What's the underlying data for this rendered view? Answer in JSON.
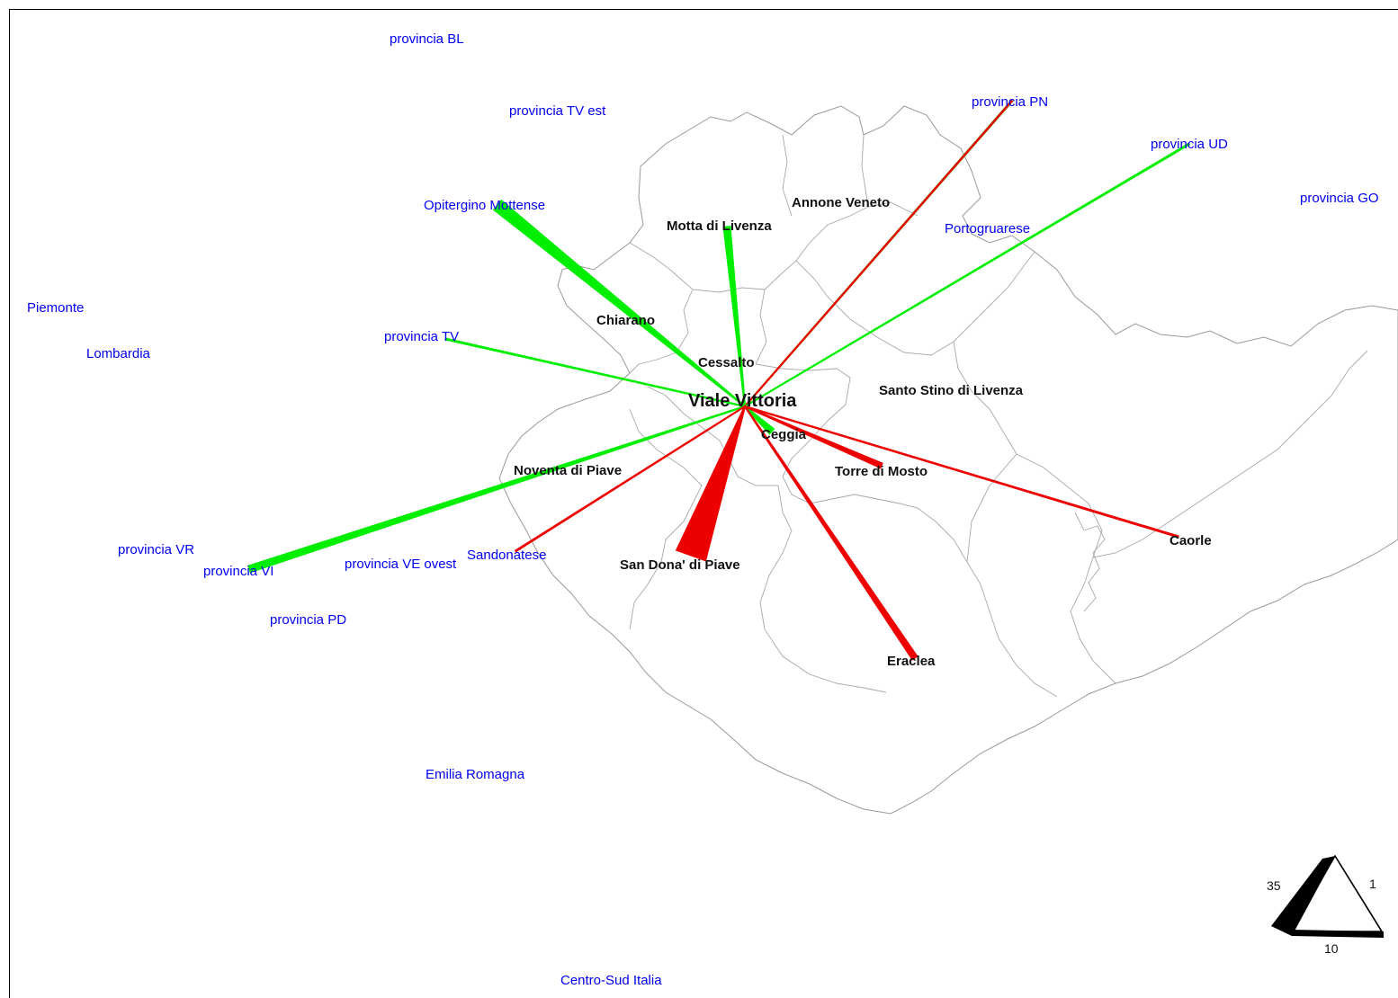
{
  "colors": {
    "outflow": "#00ee00",
    "inflow": "#ee0000",
    "external_label": "#0000ee",
    "municipality_label": "#111111"
  },
  "center": {
    "name": "Viale Vittoria"
  },
  "places": [
    {
      "id": "provincia-bl",
      "name": "provincia BL",
      "type": "external"
    },
    {
      "id": "provincia-tv-est",
      "name": "provincia TV est",
      "type": "external"
    },
    {
      "id": "provincia-pn",
      "name": "provincia PN",
      "type": "external"
    },
    {
      "id": "provincia-ud",
      "name": "provincia UD",
      "type": "external"
    },
    {
      "id": "provincia-go",
      "name": "provincia GO",
      "type": "external"
    },
    {
      "id": "opitergino-mottense",
      "name": "Opitergino Mottense",
      "type": "external"
    },
    {
      "id": "portogruarese",
      "name": "Portogruarese",
      "type": "external"
    },
    {
      "id": "piemonte",
      "name": "Piemonte",
      "type": "external"
    },
    {
      "id": "lombardia",
      "name": "Lombardia",
      "type": "external"
    },
    {
      "id": "provincia-tv",
      "name": "provincia TV",
      "type": "external"
    },
    {
      "id": "provincia-vr",
      "name": "provincia VR",
      "type": "external"
    },
    {
      "id": "provincia-vi",
      "name": "provincia VI",
      "type": "external"
    },
    {
      "id": "provincia-ve-ovest",
      "name": "provincia VE ovest",
      "type": "external"
    },
    {
      "id": "sandonatese",
      "name": "Sandonatese",
      "type": "external"
    },
    {
      "id": "provincia-pd",
      "name": "provincia PD",
      "type": "external"
    },
    {
      "id": "emilia-romagna",
      "name": "Emilia Romagna",
      "type": "external"
    },
    {
      "id": "centro-sud-italia",
      "name": "Centro-Sud Italia",
      "type": "external"
    },
    {
      "id": "annone-veneto",
      "name": "Annone Veneto",
      "type": "municipality"
    },
    {
      "id": "motta-di-livenza",
      "name": "Motta di Livenza",
      "type": "municipality"
    },
    {
      "id": "chiarano",
      "name": "Chiarano",
      "type": "municipality"
    },
    {
      "id": "cessalto",
      "name": "Cessalto",
      "type": "municipality"
    },
    {
      "id": "santo-stino-di-livenza",
      "name": "Santo Stino di Livenza",
      "type": "municipality"
    },
    {
      "id": "ceggia",
      "name": "Ceggia",
      "type": "municipality"
    },
    {
      "id": "noventa-di-piave",
      "name": "Noventa di Piave",
      "type": "municipality"
    },
    {
      "id": "torre-di-mosto",
      "name": "Torre di Mosto",
      "type": "municipality"
    },
    {
      "id": "caorle",
      "name": "Caorle",
      "type": "municipality"
    },
    {
      "id": "san-dona-di-piave",
      "name": "San Dona' di Piave",
      "type": "municipality"
    },
    {
      "id": "eraclea",
      "name": "Eraclea",
      "type": "municipality"
    }
  ],
  "flows": [
    {
      "id": "opitergino-mottense",
      "direction": "out",
      "value": 14
    },
    {
      "id": "motta-di-livenza",
      "direction": "out",
      "value": 8
    },
    {
      "id": "provincia-pn",
      "direction": "out",
      "value": 2
    },
    {
      "id": "provincia-pn",
      "direction": "in",
      "value": 1
    },
    {
      "id": "provincia-ud",
      "direction": "out",
      "value": 2
    },
    {
      "id": "provincia-tv",
      "direction": "out",
      "value": 2
    },
    {
      "id": "provincia-vi",
      "direction": "out",
      "value": 8
    },
    {
      "id": "ceggia",
      "direction": "out",
      "value": 8
    },
    {
      "id": "torre-di-mosto",
      "direction": "in",
      "value": 6
    },
    {
      "id": "caorle",
      "direction": "in",
      "value": 2
    },
    {
      "id": "sandonatese",
      "direction": "in",
      "value": 2
    },
    {
      "id": "san-dona-di-piave",
      "direction": "in",
      "value": 35
    },
    {
      "id": "eraclea",
      "direction": "in",
      "value": 7
    }
  ],
  "legend": {
    "values": [
      "35",
      "1",
      "10"
    ]
  }
}
